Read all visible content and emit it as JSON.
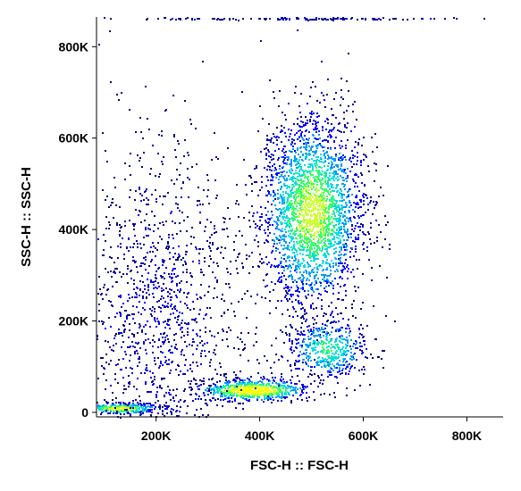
{
  "chart_data": {
    "type": "scatter",
    "subtype": "flow-cytometry density dot plot",
    "xlabel": "FSC-H :: FSC-H",
    "ylabel": "SSC-H :: SSC-H",
    "xlim": [
      85000,
      870000
    ],
    "ylim": [
      -10000,
      865000
    ],
    "x_ticks": [
      {
        "value": 200000,
        "label": "200K"
      },
      {
        "value": 400000,
        "label": "400K"
      },
      {
        "value": 600000,
        "label": "600K"
      },
      {
        "value": 800000,
        "label": "800K"
      }
    ],
    "y_ticks": [
      {
        "value": 0,
        "label": "0"
      },
      {
        "value": 200000,
        "label": "200K"
      },
      {
        "value": 400000,
        "label": "400K"
      },
      {
        "value": 600000,
        "label": "600K"
      },
      {
        "value": 800000,
        "label": "800K"
      }
    ],
    "grid": false,
    "density_colormap": [
      "#00008b",
      "#0000ff",
      "#0099ff",
      "#00dddd",
      "#33ff66",
      "#ccff33",
      "#ffff00"
    ],
    "populations": [
      {
        "x_center": 500000,
        "y_center": 440000,
        "x_spread": 50000,
        "y_spread": 105000,
        "count": 2600,
        "peak_density": 0.75
      },
      {
        "x_center": 385000,
        "y_center": 50000,
        "x_spread": 55000,
        "y_spread": 12000,
        "count": 700,
        "peak_density": 1.0
      },
      {
        "x_center": 530000,
        "y_center": 140000,
        "x_spread": 40000,
        "y_spread": 35000,
        "count": 500,
        "peak_density": 0.55
      },
      {
        "x_center": 130000,
        "y_center": 10000,
        "x_spread": 40000,
        "y_spread": 6000,
        "count": 350,
        "peak_density": 0.85
      },
      {
        "x_center": 200000,
        "y_center": 200000,
        "x_spread": 90000,
        "y_spread": 200000,
        "count": 1500,
        "peak_density": 0.1
      },
      {
        "x_center": 480000,
        "y_center": 863000,
        "x_spread": 170000,
        "y_spread": 1500,
        "count": 160,
        "peak_density": 0.1
      }
    ]
  }
}
